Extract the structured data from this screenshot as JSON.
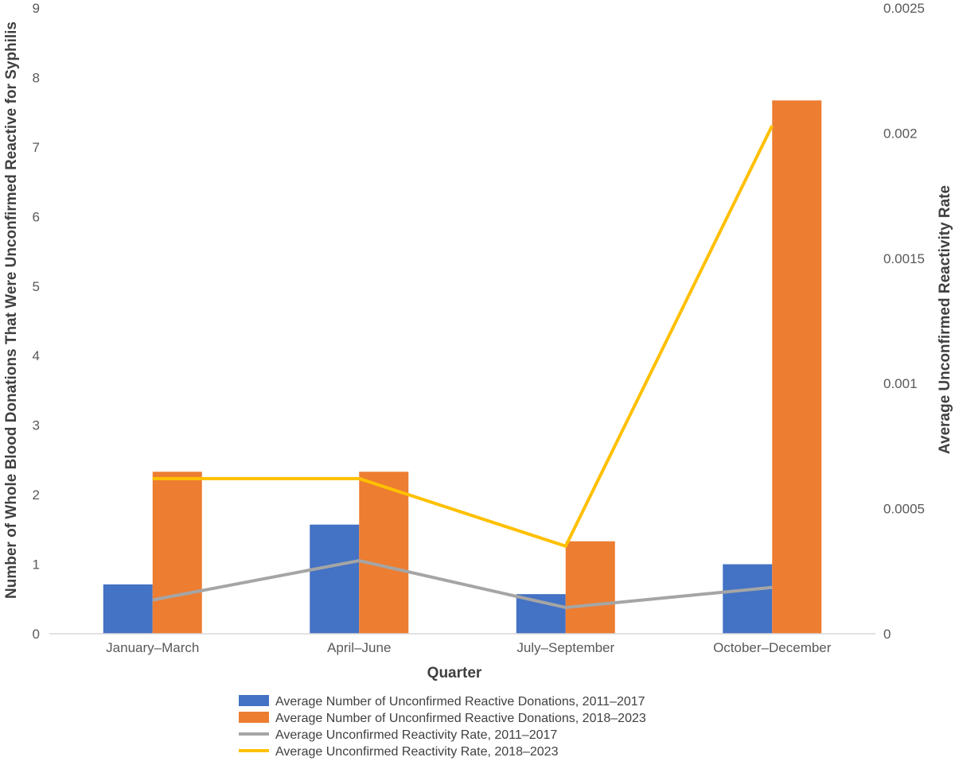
{
  "chart_data": {
    "type": "bar",
    "xlabel": "Quarter",
    "ylabel": "Number of Whole Blood Donations That Were Unconfirmed Reactive for Syphilis",
    "y2label": "Average Unconfirmed Reactivity Rate",
    "categories": [
      "January–March",
      "April–June",
      "July–September",
      "October–December"
    ],
    "ylim": [
      0,
      9
    ],
    "y2lim": [
      0,
      0.0025
    ],
    "yticks": [
      "0",
      "1",
      "2",
      "3",
      "4",
      "5",
      "6",
      "7",
      "8",
      "9"
    ],
    "y2ticks": [
      "0",
      "0.0005",
      "0.001",
      "0.0015",
      "0.002",
      "0.0025"
    ],
    "grid": false,
    "legend_position": "bottom",
    "series": [
      {
        "name": "Average Number of Unconfirmed Reactive Donations, 2011–2017",
        "kind": "bar",
        "axis": "left",
        "color": "#4472C4",
        "values": [
          0.71,
          1.57,
          0.57,
          1.0
        ]
      },
      {
        "name": "Average Number of Unconfirmed Reactive Donations, 2018–2023",
        "kind": "bar",
        "axis": "left",
        "color": "#ED7D31",
        "values": [
          2.33,
          2.33,
          1.33,
          7.67
        ]
      },
      {
        "name": "Average Unconfirmed Reactivity Rate, 2011–2017",
        "kind": "line",
        "axis": "right",
        "color": "#A5A5A5",
        "values": [
          0.000135,
          0.000292,
          0.000105,
          0.000185
        ]
      },
      {
        "name": "Average Unconfirmed Reactivity Rate, 2018–2023",
        "kind": "line",
        "axis": "right",
        "color": "#FFC000",
        "values": [
          0.00062,
          0.00062,
          0.00035,
          0.00203
        ]
      }
    ]
  }
}
